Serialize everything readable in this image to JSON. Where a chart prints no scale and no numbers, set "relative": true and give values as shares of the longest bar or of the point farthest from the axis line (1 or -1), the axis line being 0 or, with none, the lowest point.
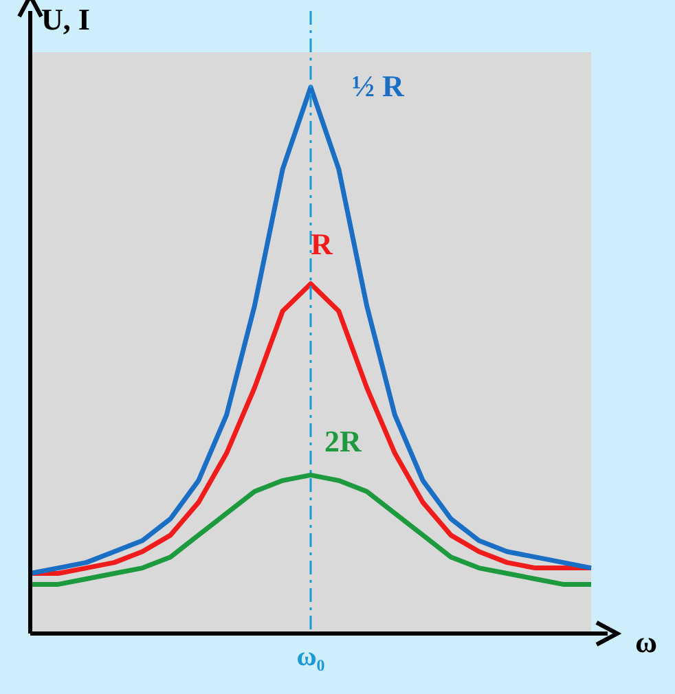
{
  "chart_data": {
    "type": "line",
    "relative": true,
    "xlabel": "ω",
    "ylabel": "U, I",
    "legend": false,
    "marker": "none",
    "grid": false,
    "categories": [
      null,
      null,
      null,
      null,
      null,
      null,
      null,
      null,
      null,
      null,
      null,
      null,
      null,
      null,
      null,
      null,
      null,
      null,
      null,
      null,
      null
    ],
    "series": [
      {
        "name": "½ R",
        "color": "#1a6fc4",
        "values": [
          0.11,
          0.12,
          0.13,
          0.15,
          0.17,
          0.21,
          0.28,
          0.4,
          0.6,
          0.85,
          1,
          0.85,
          0.6,
          0.4,
          0.28,
          0.21,
          0.17,
          0.15,
          0.14,
          0.13,
          0.12
        ]
      },
      {
        "name": "R",
        "color": "#f01c1c",
        "values": [
          0.11,
          0.11,
          0.12,
          0.13,
          0.15,
          0.18,
          0.24,
          0.33,
          0.45,
          0.59,
          0.64,
          0.59,
          0.45,
          0.33,
          0.24,
          0.18,
          0.15,
          0.13,
          0.12,
          0.12,
          0.12
        ]
      },
      {
        "name": "2R",
        "color": "#1e9a3e",
        "values": [
          0.09,
          0.09,
          0.1,
          0.11,
          0.12,
          0.14,
          0.18,
          0.22,
          0.26,
          0.28,
          0.29,
          0.28,
          0.26,
          0.22,
          0.18,
          0.14,
          0.12,
          0.11,
          0.1,
          0.09,
          0.09
        ]
      }
    ],
    "ref_lines": [
      {
        "axis": "x",
        "label": "ω₀",
        "color": "#1a9ad6",
        "line_style": "dashdot"
      }
    ]
  }
}
